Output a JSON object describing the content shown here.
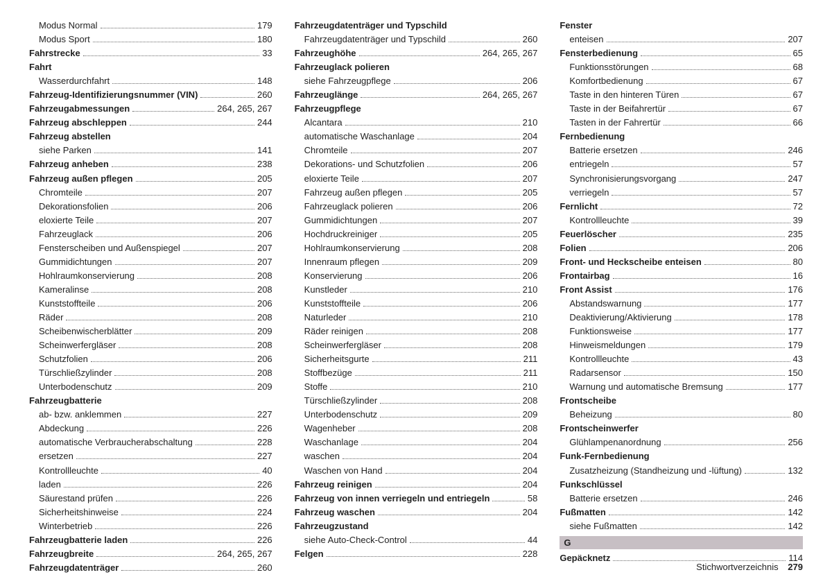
{
  "footer": {
    "title": "Stichwortverzeichnis",
    "page": "279"
  },
  "sectionG": "G",
  "columns": [
    [
      {
        "label": "Modus Normal",
        "page": "179",
        "level": 2,
        "bold": false
      },
      {
        "label": "Modus Sport",
        "page": "180",
        "level": 2,
        "bold": false
      },
      {
        "label": "Fahrstrecke",
        "page": "33",
        "level": 1,
        "bold": true
      },
      {
        "label": "Fahrt",
        "page": "",
        "level": 1,
        "bold": true,
        "header": true
      },
      {
        "label": "Wasserdurchfahrt",
        "page": "148",
        "level": 2,
        "bold": false
      },
      {
        "label": "Fahrzeug-Identifizierungsnummer (VIN)",
        "page": "260",
        "level": 1,
        "bold": true
      },
      {
        "label": "Fahrzeugabmessungen",
        "page": "264, 265, 267",
        "level": 1,
        "bold": true
      },
      {
        "label": "Fahrzeug abschleppen",
        "page": "244",
        "level": 1,
        "bold": true
      },
      {
        "label": "Fahrzeug abstellen",
        "page": "",
        "level": 1,
        "bold": true,
        "header": true
      },
      {
        "label": "siehe Parken",
        "page": "141",
        "level": 2,
        "bold": false
      },
      {
        "label": "Fahrzeug anheben",
        "page": "238",
        "level": 1,
        "bold": true
      },
      {
        "label": "Fahrzeug außen pflegen",
        "page": "205",
        "level": 1,
        "bold": true
      },
      {
        "label": "Chromteile",
        "page": "207",
        "level": 2,
        "bold": false
      },
      {
        "label": "Dekorationsfolien",
        "page": "206",
        "level": 2,
        "bold": false
      },
      {
        "label": "eloxierte Teile",
        "page": "207",
        "level": 2,
        "bold": false
      },
      {
        "label": "Fahrzeuglack",
        "page": "206",
        "level": 2,
        "bold": false
      },
      {
        "label": "Fensterscheiben und Außenspiegel",
        "page": "207",
        "level": 2,
        "bold": false
      },
      {
        "label": "Gummidichtungen",
        "page": "207",
        "level": 2,
        "bold": false
      },
      {
        "label": "Hohlraumkonservierung",
        "page": "208",
        "level": 2,
        "bold": false
      },
      {
        "label": "Kameralinse",
        "page": "208",
        "level": 2,
        "bold": false
      },
      {
        "label": "Kunststoffteile",
        "page": "206",
        "level": 2,
        "bold": false
      },
      {
        "label": "Räder",
        "page": "208",
        "level": 2,
        "bold": false
      },
      {
        "label": "Scheibenwischerblätter",
        "page": "209",
        "level": 2,
        "bold": false
      },
      {
        "label": "Scheinwerfergläser",
        "page": "208",
        "level": 2,
        "bold": false
      },
      {
        "label": "Schutzfolien",
        "page": "206",
        "level": 2,
        "bold": false
      },
      {
        "label": "Türschließzylinder",
        "page": "208",
        "level": 2,
        "bold": false
      },
      {
        "label": "Unterbodenschutz",
        "page": "209",
        "level": 2,
        "bold": false
      },
      {
        "label": "Fahrzeugbatterie",
        "page": "",
        "level": 1,
        "bold": true,
        "header": true
      },
      {
        "label": "ab- bzw. anklemmen",
        "page": "227",
        "level": 2,
        "bold": false
      },
      {
        "label": "Abdeckung",
        "page": "226",
        "level": 2,
        "bold": false
      },
      {
        "label": "automatische Verbraucherabschaltung",
        "page": "228",
        "level": 2,
        "bold": false
      },
      {
        "label": "ersetzen",
        "page": "227",
        "level": 2,
        "bold": false
      },
      {
        "label": "Kontrollleuchte",
        "page": "40",
        "level": 2,
        "bold": false
      },
      {
        "label": "laden",
        "page": "226",
        "level": 2,
        "bold": false
      },
      {
        "label": "Säurestand prüfen",
        "page": "226",
        "level": 2,
        "bold": false
      },
      {
        "label": "Sicherheitshinweise",
        "page": "224",
        "level": 2,
        "bold": false
      },
      {
        "label": "Winterbetrieb",
        "page": "226",
        "level": 2,
        "bold": false
      },
      {
        "label": "Fahrzeugbatterie laden",
        "page": "226",
        "level": 1,
        "bold": true
      },
      {
        "label": "Fahrzeugbreite",
        "page": "264, 265, 267",
        "level": 1,
        "bold": true
      },
      {
        "label": "Fahrzeugdatenträger",
        "page": "260",
        "level": 1,
        "bold": true
      }
    ],
    [
      {
        "label": "Fahrzeugdatenträger und Typschild",
        "page": "",
        "level": 1,
        "bold": true,
        "header": true
      },
      {
        "label": "Fahrzeugdatenträger und Typschild",
        "page": "260",
        "level": 2,
        "bold": false
      },
      {
        "label": "Fahrzeughöhe",
        "page": "264, 265, 267",
        "level": 1,
        "bold": true
      },
      {
        "label": "Fahrzeuglack polieren",
        "page": "",
        "level": 1,
        "bold": true,
        "header": true
      },
      {
        "label": "siehe Fahrzeugpflege",
        "page": "206",
        "level": 2,
        "bold": false
      },
      {
        "label": "Fahrzeuglänge",
        "page": "264, 265, 267",
        "level": 1,
        "bold": true
      },
      {
        "label": "Fahrzeugpflege",
        "page": "",
        "level": 1,
        "bold": true,
        "header": true
      },
      {
        "label": "Alcantara",
        "page": "210",
        "level": 2,
        "bold": false
      },
      {
        "label": "automatische Waschanlage",
        "page": "204",
        "level": 2,
        "bold": false
      },
      {
        "label": "Chromteile",
        "page": "207",
        "level": 2,
        "bold": false
      },
      {
        "label": "Dekorations- und Schutzfolien",
        "page": "206",
        "level": 2,
        "bold": false
      },
      {
        "label": "eloxierte Teile",
        "page": "207",
        "level": 2,
        "bold": false
      },
      {
        "label": "Fahrzeug außen pflegen",
        "page": "205",
        "level": 2,
        "bold": false
      },
      {
        "label": "Fahrzeuglack polieren",
        "page": "206",
        "level": 2,
        "bold": false
      },
      {
        "label": "Gummidichtungen",
        "page": "207",
        "level": 2,
        "bold": false
      },
      {
        "label": "Hochdruckreiniger",
        "page": "205",
        "level": 2,
        "bold": false
      },
      {
        "label": "Hohlraumkonservierung",
        "page": "208",
        "level": 2,
        "bold": false
      },
      {
        "label": "Innenraum pflegen",
        "page": "209",
        "level": 2,
        "bold": false
      },
      {
        "label": "Konservierung",
        "page": "206",
        "level": 2,
        "bold": false
      },
      {
        "label": "Kunstleder",
        "page": "210",
        "level": 2,
        "bold": false
      },
      {
        "label": "Kunststoffteile",
        "page": "206",
        "level": 2,
        "bold": false
      },
      {
        "label": "Naturleder",
        "page": "210",
        "level": 2,
        "bold": false
      },
      {
        "label": "Räder reinigen",
        "page": "208",
        "level": 2,
        "bold": false
      },
      {
        "label": "Scheinwerfergläser",
        "page": "208",
        "level": 2,
        "bold": false
      },
      {
        "label": "Sicherheitsgurte",
        "page": "211",
        "level": 2,
        "bold": false
      },
      {
        "label": "Stoffbezüge",
        "page": "211",
        "level": 2,
        "bold": false
      },
      {
        "label": "Stoffe",
        "page": "210",
        "level": 2,
        "bold": false
      },
      {
        "label": "Türschließzylinder",
        "page": "208",
        "level": 2,
        "bold": false
      },
      {
        "label": "Unterbodenschutz",
        "page": "209",
        "level": 2,
        "bold": false
      },
      {
        "label": "Wagenheber",
        "page": "208",
        "level": 2,
        "bold": false
      },
      {
        "label": "Waschanlage",
        "page": "204",
        "level": 2,
        "bold": false
      },
      {
        "label": "waschen",
        "page": "204",
        "level": 2,
        "bold": false
      },
      {
        "label": "Waschen von Hand",
        "page": "204",
        "level": 2,
        "bold": false
      },
      {
        "label": "Fahrzeug reinigen",
        "page": "204",
        "level": 1,
        "bold": true
      },
      {
        "label": "Fahrzeug von innen verriegeln und entriegeln",
        "page": "58",
        "level": 1,
        "bold": true
      },
      {
        "label": "Fahrzeug waschen",
        "page": "204",
        "level": 1,
        "bold": true
      },
      {
        "label": "Fahrzeugzustand",
        "page": "",
        "level": 1,
        "bold": true,
        "header": true
      },
      {
        "label": "siehe Auto-Check-Control",
        "page": "44",
        "level": 2,
        "bold": false
      },
      {
        "label": "Felgen",
        "page": "228",
        "level": 1,
        "bold": true
      }
    ],
    [
      {
        "label": "Fenster",
        "page": "",
        "level": 1,
        "bold": true,
        "header": true
      },
      {
        "label": "enteisen",
        "page": "207",
        "level": 2,
        "bold": false
      },
      {
        "label": "Fensterbedienung",
        "page": "65",
        "level": 1,
        "bold": true
      },
      {
        "label": "Funktionsstörungen",
        "page": "68",
        "level": 2,
        "bold": false
      },
      {
        "label": "Komfortbedienung",
        "page": "67",
        "level": 2,
        "bold": false
      },
      {
        "label": "Taste in den hinteren Türen",
        "page": "67",
        "level": 2,
        "bold": false
      },
      {
        "label": "Taste in der Beifahrertür",
        "page": "67",
        "level": 2,
        "bold": false
      },
      {
        "label": "Tasten in der Fahrertür",
        "page": "66",
        "level": 2,
        "bold": false
      },
      {
        "label": "Fernbedienung",
        "page": "",
        "level": 1,
        "bold": true,
        "header": true
      },
      {
        "label": "Batterie ersetzen",
        "page": "246",
        "level": 2,
        "bold": false
      },
      {
        "label": "entriegeln",
        "page": "57",
        "level": 2,
        "bold": false
      },
      {
        "label": "Synchronisierungsvorgang",
        "page": "247",
        "level": 2,
        "bold": false
      },
      {
        "label": "verriegeln",
        "page": "57",
        "level": 2,
        "bold": false
      },
      {
        "label": "Fernlicht",
        "page": "72",
        "level": 1,
        "bold": true
      },
      {
        "label": "Kontrollleuchte",
        "page": "39",
        "level": 2,
        "bold": false
      },
      {
        "label": "Feuerlöscher",
        "page": "235",
        "level": 1,
        "bold": true
      },
      {
        "label": "Folien",
        "page": "206",
        "level": 1,
        "bold": true
      },
      {
        "label": "Front- und Heckscheibe enteisen",
        "page": "80",
        "level": 1,
        "bold": true
      },
      {
        "label": "Frontairbag",
        "page": "16",
        "level": 1,
        "bold": true
      },
      {
        "label": "Front Assist",
        "page": "176",
        "level": 1,
        "bold": true
      },
      {
        "label": "Abstandswarnung",
        "page": "177",
        "level": 2,
        "bold": false
      },
      {
        "label": "Deaktivierung/Aktivierung",
        "page": "178",
        "level": 2,
        "bold": false
      },
      {
        "label": "Funktionsweise",
        "page": "177",
        "level": 2,
        "bold": false
      },
      {
        "label": "Hinweismeldungen",
        "page": "179",
        "level": 2,
        "bold": false
      },
      {
        "label": "Kontrollleuchte",
        "page": "43",
        "level": 2,
        "bold": false
      },
      {
        "label": "Radarsensor",
        "page": "150",
        "level": 2,
        "bold": false
      },
      {
        "label": "Warnung und automatische Bremsung",
        "page": "177",
        "level": 2,
        "bold": false
      },
      {
        "label": "Frontscheibe",
        "page": "",
        "level": 1,
        "bold": true,
        "header": true
      },
      {
        "label": "Beheizung",
        "page": "80",
        "level": 2,
        "bold": false
      },
      {
        "label": "Frontscheinwerfer",
        "page": "",
        "level": 1,
        "bold": true,
        "header": true
      },
      {
        "label": "Glühlampenanordnung",
        "page": "256",
        "level": 2,
        "bold": false
      },
      {
        "label": "Funk-Fernbedienung",
        "page": "",
        "level": 1,
        "bold": true,
        "header": true
      },
      {
        "label": "Zusatzheizung (Standheizung und -lüftung)",
        "page": "132",
        "level": 2,
        "bold": false
      },
      {
        "label": "Funkschlüssel",
        "page": "",
        "level": 1,
        "bold": true,
        "header": true
      },
      {
        "label": "Batterie ersetzen",
        "page": "246",
        "level": 2,
        "bold": false
      },
      {
        "label": "Fußmatten",
        "page": "142",
        "level": 1,
        "bold": true
      },
      {
        "label": "siehe Fußmatten",
        "page": "142",
        "level": 2,
        "bold": false
      },
      {
        "label": "__SECTION_G__",
        "divider": true
      },
      {
        "label": "Gepäcknetz",
        "page": "114",
        "level": 1,
        "bold": true
      }
    ]
  ]
}
